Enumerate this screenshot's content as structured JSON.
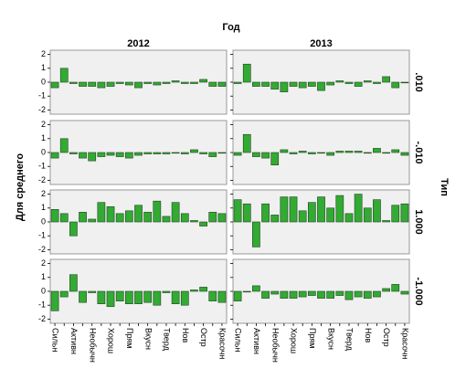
{
  "title": "Год",
  "ylabel": "Для среднего",
  "row_title": "Тип",
  "columns": [
    "2012",
    "2013"
  ],
  "rows": [
    ".010",
    "-.010",
    "1.000",
    "-1.000"
  ],
  "categories": [
    "Сильн",
    null,
    "Активн",
    null,
    "Необычн",
    null,
    "Хорош",
    null,
    "Прям",
    null,
    "Вкусн",
    null,
    "Тверд",
    null,
    "Нов",
    null,
    "Остр",
    null,
    "Красочн"
  ],
  "chart_data": [
    {
      "type": "bar",
      "color": "#33aa33",
      "ylim": [
        -2.3,
        2.3
      ],
      "yticks": [
        -2,
        -1,
        0,
        1,
        2
      ],
      "values": [
        -0.4,
        1.0,
        -0.1,
        -0.3,
        -0.3,
        -0.4,
        -0.3,
        -0.1,
        -0.2,
        -0.4,
        -0.1,
        -0.2,
        -0.1,
        0.1,
        -0.1,
        -0.1,
        0.2,
        -0.3,
        -0.3
      ]
    },
    {
      "type": "bar",
      "color": "#33aa33",
      "ylim": [
        -2.3,
        2.3
      ],
      "yticks": [
        -2,
        -1,
        0,
        1,
        2
      ],
      "values": [
        -0.1,
        1.3,
        -0.3,
        -0.3,
        -0.5,
        -0.7,
        -0.3,
        -0.4,
        -0.3,
        -0.6,
        -0.2,
        0.1,
        -0.1,
        -0.3,
        0.1,
        -0.1,
        0.4,
        -0.4,
        0
      ]
    },
    {
      "type": "bar",
      "color": "#33aa33",
      "ylim": [
        -2.3,
        2.3
      ],
      "yticks": [
        -2,
        -1,
        0,
        1,
        2
      ],
      "values": [
        -0.4,
        1.0,
        -0.1,
        -0.4,
        -0.6,
        -0.3,
        -0.2,
        -0.3,
        -0.4,
        -0.2,
        -0.1,
        -0.1,
        -0.1,
        0,
        -0.1,
        0.2,
        -0.1,
        -0.3,
        0
      ]
    },
    {
      "type": "bar",
      "color": "#33aa33",
      "ylim": [
        -2.3,
        2.3
      ],
      "yticks": [
        -2,
        -1,
        0,
        1,
        2
      ],
      "values": [
        -0.2,
        1.3,
        -0.3,
        -0.4,
        -0.9,
        0.2,
        -0.1,
        0.1,
        -0.1,
        0,
        -0.2,
        0.1,
        0.1,
        0.1,
        0,
        0.3,
        0,
        0.2,
        -0.2
      ]
    },
    {
      "type": "bar",
      "color": "#33aa33",
      "ylim": [
        -2.3,
        2.3
      ],
      "yticks": [
        -2,
        -1,
        0,
        1,
        2
      ],
      "values": [
        0.9,
        0.6,
        -1.0,
        0.7,
        0.2,
        1.4,
        1.1,
        0.6,
        0.8,
        1.2,
        0.7,
        1.5,
        0.4,
        1.4,
        0.6,
        0.1,
        -0.3,
        0.7,
        0.6
      ]
    },
    {
      "type": "bar",
      "color": "#33aa33",
      "ylim": [
        -2.3,
        2.3
      ],
      "yticks": [
        -2,
        -1,
        0,
        1,
        2
      ],
      "values": [
        1.6,
        1.3,
        -1.8,
        1.3,
        0.5,
        1.8,
        1.8,
        0.8,
        1.4,
        1.8,
        1.0,
        1.9,
        0.6,
        2.0,
        1.0,
        1.6,
        0.1,
        1.2,
        1.3
      ]
    },
    {
      "type": "bar",
      "color": "#33aa33",
      "ylim": [
        -2.3,
        2.3
      ],
      "yticks": [
        -2,
        -1,
        0,
        1,
        2
      ],
      "values": [
        -1.4,
        -0.4,
        1.2,
        -0.8,
        -0.1,
        -0.9,
        -1.1,
        -0.7,
        -0.9,
        -0.9,
        -0.8,
        -1.0,
        -0.1,
        -0.9,
        -1.0,
        0.1,
        0.3,
        -0.7,
        -0.8
      ]
    },
    {
      "type": "bar",
      "color": "#33aa33",
      "ylim": [
        -2.3,
        2.3
      ],
      "yticks": [
        -2,
        -1,
        0,
        1,
        2
      ],
      "values": [
        -0.7,
        0,
        0.4,
        -0.5,
        -0.2,
        -0.5,
        -0.5,
        -0.4,
        -0.3,
        -0.5,
        -0.5,
        -0.3,
        -0.6,
        -0.4,
        -0.5,
        -0.4,
        0.2,
        0.5,
        -0.2
      ]
    }
  ]
}
